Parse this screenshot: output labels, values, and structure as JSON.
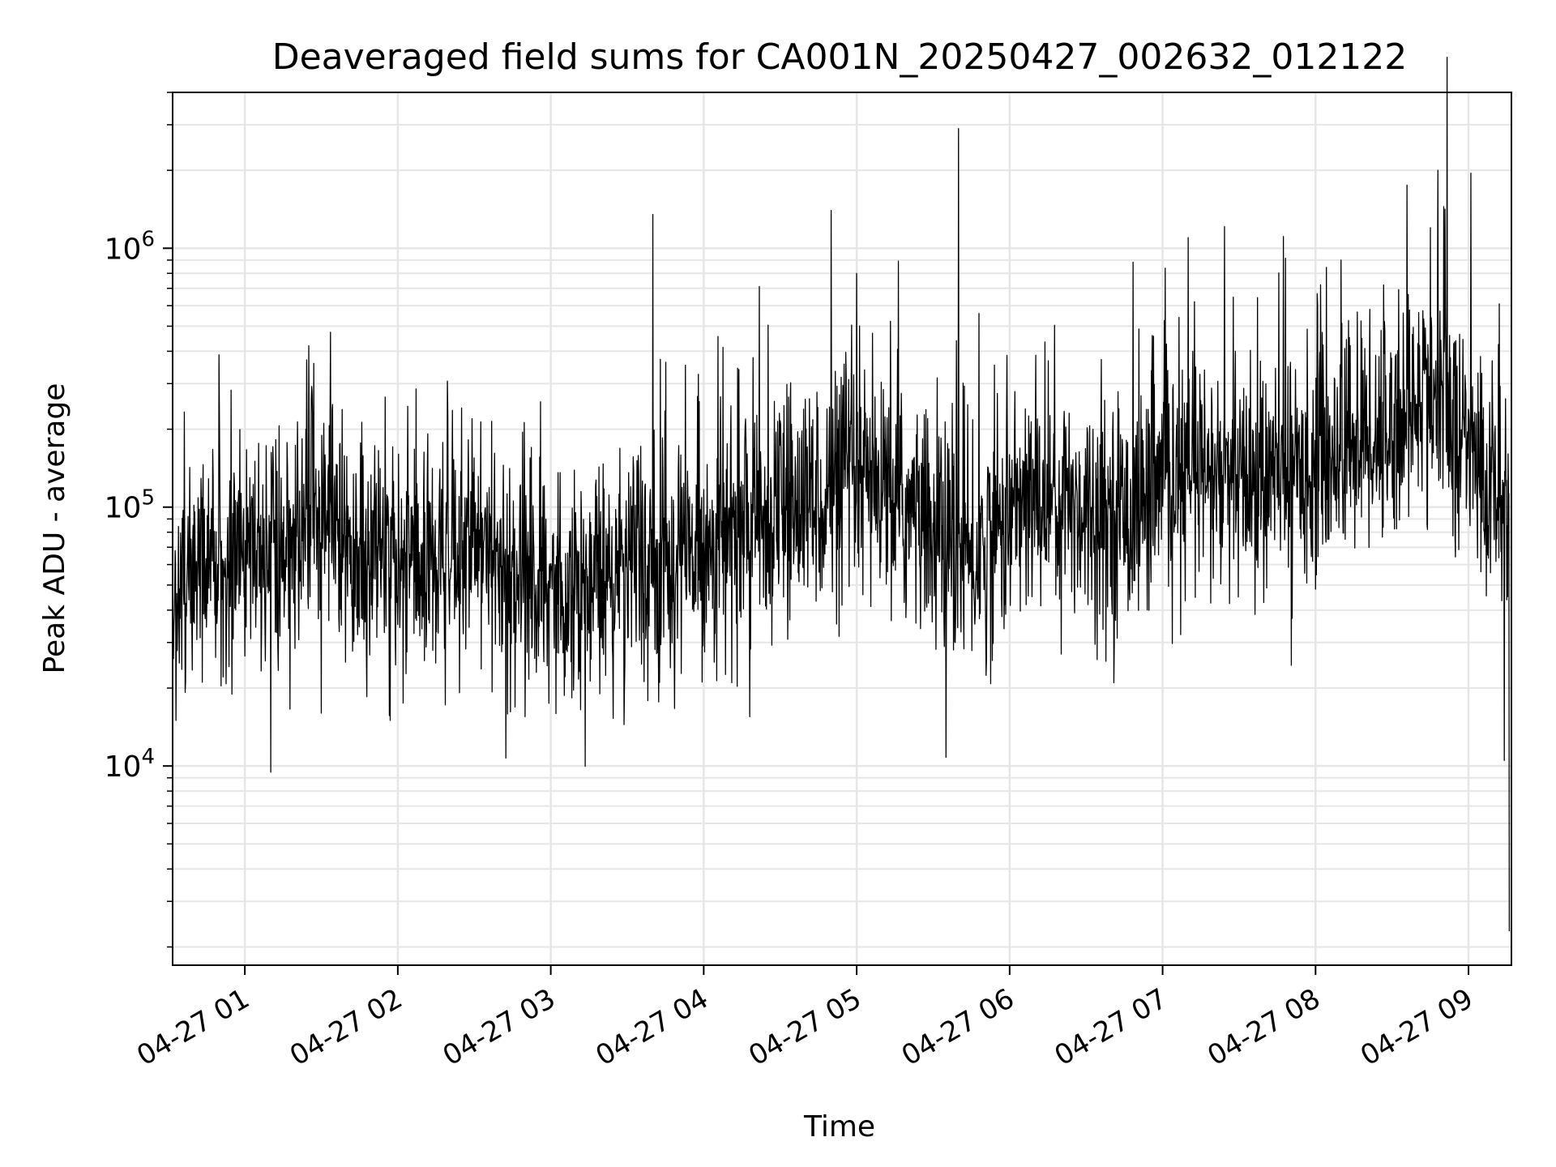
{
  "chart_data": {
    "type": "line",
    "title": "Deaveraged field sums for CA001N_20250427_002632_012122",
    "xlabel": "Time",
    "ylabel": "Peak ADU - average",
    "yscale": "log",
    "ylim": [
      1700,
      4000000
    ],
    "xlim": [
      "2025-04-27 00:31:40",
      "2025-04-27 09:16:50"
    ],
    "x_ticks": [
      "2025-04-27 01:00",
      "2025-04-27 02:00",
      "2025-04-27 03:00",
      "2025-04-27 04:00",
      "2025-04-27 05:00",
      "2025-04-27 06:00",
      "2025-04-27 07:00",
      "2025-04-27 08:00",
      "2025-04-27 09:00"
    ],
    "x_tick_labels": [
      "04-27 01",
      "04-27 02",
      "04-27 03",
      "04-27 04",
      "04-27 05",
      "04-27 06",
      "04-27 07",
      "04-27 08",
      "04-27 09"
    ],
    "y_ticks": [
      10000,
      100000,
      1000000
    ],
    "y_tick_labels": [
      {
        "base": "10",
        "exp": "4"
      },
      {
        "base": "10",
        "exp": "5"
      },
      {
        "base": "10",
        "exp": "6"
      }
    ],
    "grid": true,
    "series_color": "#000000",
    "series": [
      {
        "x": [
          "2025-04-27 00:32",
          "2025-04-27 00:45",
          "2025-04-27 01:00",
          "2025-04-27 01:15",
          "2025-04-27 01:30",
          "2025-04-27 01:45",
          "2025-04-27 02:00",
          "2025-04-27 02:15",
          "2025-04-27 02:30",
          "2025-04-27 02:45",
          "2025-04-27 03:00",
          "2025-04-27 03:15",
          "2025-04-27 03:30",
          "2025-04-27 03:45",
          "2025-04-27 04:00",
          "2025-04-27 04:15",
          "2025-04-27 04:30",
          "2025-04-27 04:45",
          "2025-04-27 05:00",
          "2025-04-27 05:15",
          "2025-04-27 05:30",
          "2025-04-27 05:45",
          "2025-04-27 06:00",
          "2025-04-27 06:15",
          "2025-04-27 06:30",
          "2025-04-27 06:45",
          "2025-04-27 07:00",
          "2025-04-27 07:15",
          "2025-04-27 07:30",
          "2025-04-27 07:45",
          "2025-04-27 08:00",
          "2025-04-27 08:15",
          "2025-04-27 08:30",
          "2025-04-27 08:45",
          "2025-04-27 09:00",
          "2025-04-27 09:10",
          "2025-04-27 09:16"
        ],
        "y": [
          45000,
          60000,
          70000,
          65000,
          110000,
          60000,
          58000,
          62000,
          68000,
          55000,
          50000,
          52000,
          55000,
          60000,
          70000,
          80000,
          95000,
          110000,
          120000,
          105000,
          80000,
          60000,
          95000,
          110000,
          100000,
          95000,
          120000,
          130000,
          120000,
          130000,
          150000,
          180000,
          200000,
          280000,
          170000,
          110000,
          90000
        ]
      }
    ],
    "spikes": [
      {
        "x": "2025-04-27 01:25",
        "y": 420000
      },
      {
        "x": "2025-04-27 03:40",
        "y": 1350000
      },
      {
        "x": "2025-04-27 04:50",
        "y": 1400000
      },
      {
        "x": "2025-04-27 05:00",
        "y": 800000
      },
      {
        "x": "2025-04-27 05:40",
        "y": 2900000
      },
      {
        "x": "2025-04-27 05:48",
        "y": 560000
      },
      {
        "x": "2025-04-27 07:10",
        "y": 1100000
      },
      {
        "x": "2025-04-27 08:10",
        "y": 900000
      },
      {
        "x": "2025-04-27 08:45",
        "y": 1200000
      },
      {
        "x": "2025-04-27 08:48",
        "y": 2000000
      },
      {
        "x": "2025-04-27 09:01",
        "y": 1950000
      }
    ],
    "dips": [
      {
        "x": "2025-04-27 00:33",
        "y": 15000
      },
      {
        "x": "2025-04-27 01:30",
        "y": 16000
      },
      {
        "x": "2025-04-27 01:57",
        "y": 15000
      },
      {
        "x": "2025-04-27 02:50",
        "y": 15500
      },
      {
        "x": "2025-04-27 04:18",
        "y": 15500
      },
      {
        "x": "2025-04-27 05:35",
        "y": 10800
      },
      {
        "x": "2025-04-27 09:14",
        "y": 10500
      },
      {
        "x": "2025-04-27 09:16",
        "y": 2300
      }
    ]
  }
}
